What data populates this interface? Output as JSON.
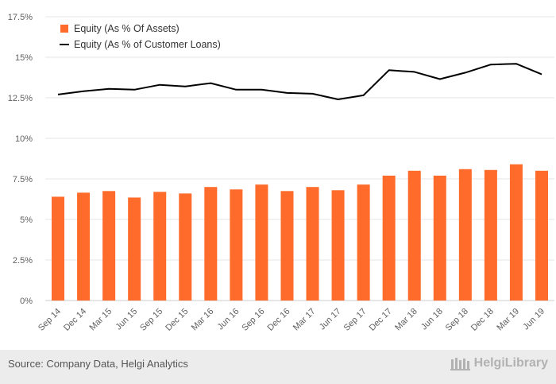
{
  "chart_data": {
    "type": "bar",
    "categories": [
      "Sep 14",
      "Dec 14",
      "Mar 15",
      "Jun 15",
      "Sep 15",
      "Dec 15",
      "Mar 16",
      "Jun 16",
      "Sep 16",
      "Dec 16",
      "Mar 17",
      "Jun 17",
      "Sep 17",
      "Dec 17",
      "Mar 18",
      "Jun 18",
      "Sep 18",
      "Dec 18",
      "Mar 19",
      "Jun 19"
    ],
    "series": [
      {
        "name": "Equity (As % Of Assets)",
        "kind": "bar",
        "color": "#ff6b2b",
        "values": [
          6.4,
          6.65,
          6.75,
          6.35,
          6.7,
          6.6,
          7.0,
          6.85,
          7.15,
          6.75,
          7.0,
          6.8,
          7.15,
          7.7,
          8.0,
          7.7,
          8.1,
          8.05,
          8.4,
          8.0
        ]
      },
      {
        "name": "Equity (As % of Customer Loans)",
        "kind": "line",
        "color": "#000000",
        "values": [
          12.7,
          12.9,
          13.05,
          13.0,
          13.3,
          13.2,
          13.4,
          13.0,
          13.0,
          12.8,
          12.75,
          12.4,
          12.65,
          14.2,
          14.1,
          13.65,
          14.05,
          14.55,
          14.6,
          13.95
        ]
      }
    ],
    "y_ticks": [
      "0%",
      "2.5%",
      "5%",
      "7.5%",
      "10%",
      "12.5%",
      "15%",
      "17.5%"
    ],
    "ylim": [
      0,
      17.5
    ],
    "grid": true,
    "legend_position": "top-left"
  },
  "footer": {
    "source": "Source: Company Data, Helgi Analytics",
    "brand": "HelgiLibrary"
  }
}
